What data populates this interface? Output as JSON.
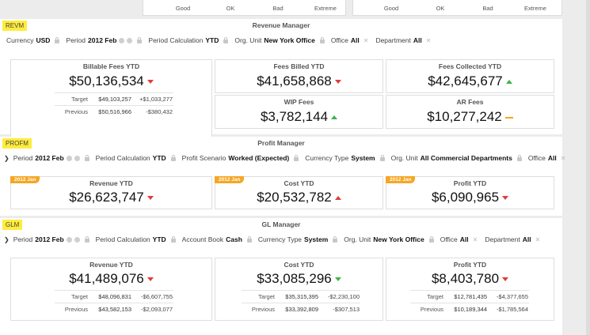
{
  "top_strip": {
    "labels": [
      "Good",
      "OK",
      "Bad",
      "Extreme"
    ]
  },
  "revm": {
    "tag": "REVM",
    "title": "Revenue Manager",
    "filters": {
      "currency_label": "Currency",
      "currency_value": "USD",
      "period_label": "Period",
      "period_value": "2012 Feb",
      "calc_label": "Period Calculation",
      "calc_value": "YTD",
      "org_label": "Org. Unit",
      "org_value": "New York Office",
      "office_label": "Office",
      "office_value": "All",
      "dept_label": "Department",
      "dept_value": "All"
    },
    "billable": {
      "title": "Billable Fees YTD",
      "value": "$50,136,534",
      "target_label": "Target",
      "target_value": "$49,103,257",
      "target_delta": "+$1,033,277",
      "previous_label": "Previous",
      "previous_value": "$50,516,966",
      "previous_delta": "-$380,432"
    },
    "billed": {
      "title": "Fees Billed YTD",
      "value": "$41,658,868"
    },
    "collected": {
      "title": "Fees Collected YTD",
      "value": "$42,645,677"
    },
    "wip": {
      "title": "WIP Fees",
      "value": "$3,782,144"
    },
    "ar": {
      "title": "AR Fees",
      "value": "$10,277,242"
    }
  },
  "profm": {
    "tag": "PROFM",
    "title": "Profit Manager",
    "filters": {
      "period_label": "Period",
      "period_value": "2012 Feb",
      "calc_label": "Period Calculation",
      "calc_value": "YTD",
      "scenario_label": "Profit Scenario",
      "scenario_value": "Worked (Expected)",
      "ctype_label": "Currency Type",
      "ctype_value": "System",
      "org_label": "Org. Unit",
      "org_value": "All Commercial Departments",
      "office_label": "Office",
      "office_value": "All"
    },
    "revenue": {
      "badge": "2012 Jan",
      "title": "Revenue YTD",
      "value": "$26,623,747"
    },
    "cost": {
      "badge": "2012 Jan",
      "title": "Cost YTD",
      "value": "$20,532,782"
    },
    "profit": {
      "badge": "2012 Jan",
      "title": "Profit YTD",
      "value": "$6,090,965"
    }
  },
  "glm": {
    "tag": "GLM",
    "title": "GL Manager",
    "filters": {
      "period_label": "Period",
      "period_value": "2012 Feb",
      "calc_label": "Period Calculation",
      "calc_value": "YTD",
      "book_label": "Account Book",
      "book_value": "Cash",
      "ctype_label": "Currency Type",
      "ctype_value": "System",
      "org_label": "Org. Unit",
      "org_value": "New York Office",
      "office_label": "Office",
      "office_value": "All",
      "dept_label": "Department",
      "dept_value": "All"
    },
    "revenue": {
      "title": "Revenue YTD",
      "value": "$41,489,076",
      "target_label": "Target",
      "target_value": "$48,096,831",
      "target_delta": "-$6,607,755",
      "previous_label": "Previous",
      "previous_value": "$43,582,153",
      "previous_delta": "-$2,093,077"
    },
    "cost": {
      "title": "Cost YTD",
      "value": "$33,085,296",
      "target_label": "Target",
      "target_value": "$35,315,395",
      "target_delta": "-$2,230,100",
      "previous_label": "Previous",
      "previous_value": "$33,392,809",
      "previous_delta": "-$307,513"
    },
    "profit": {
      "title": "Profit YTD",
      "value": "$8,403,780",
      "target_label": "Target",
      "target_value": "$12,781,435",
      "target_delta": "-$4,377,655",
      "previous_label": "Previous",
      "previous_value": "$10,189,344",
      "previous_delta": "-$1,785,564"
    }
  }
}
